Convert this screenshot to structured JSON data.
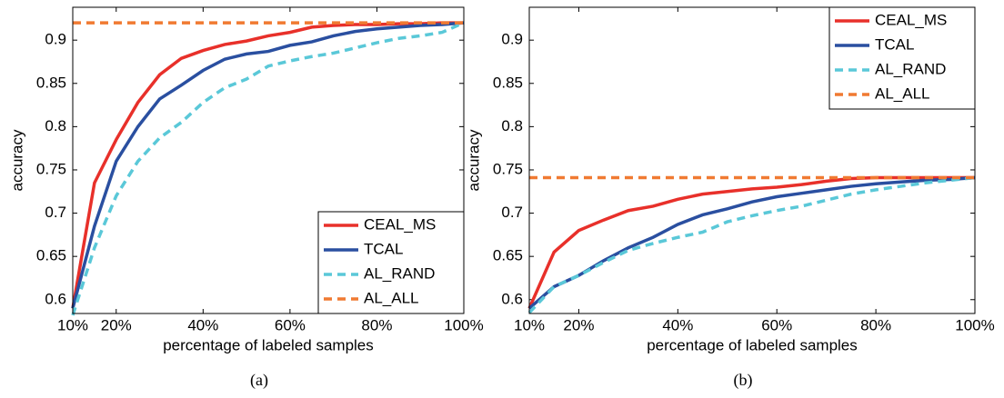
{
  "chart_data": [
    {
      "type": "line",
      "caption": "(a)",
      "x_label": "percentage of labeled samples",
      "y_label": "accuracy",
      "x": [
        10,
        15,
        20,
        25,
        30,
        35,
        40,
        45,
        50,
        55,
        60,
        65,
        70,
        75,
        80,
        85,
        90,
        95,
        100
      ],
      "series": [
        {
          "name": "CEAL_MS",
          "color": "#e8302a",
          "linestyle": "solid",
          "values": [
            0.59,
            0.735,
            0.785,
            0.828,
            0.86,
            0.879,
            0.888,
            0.895,
            0.899,
            0.905,
            0.909,
            0.915,
            0.917,
            0.918,
            0.918,
            0.919,
            0.919,
            0.92,
            0.92
          ]
        },
        {
          "name": "TCAL",
          "color": "#2a4fa0",
          "linestyle": "solid",
          "values": [
            0.59,
            0.685,
            0.76,
            0.8,
            0.832,
            0.848,
            0.865,
            0.878,
            0.884,
            0.887,
            0.894,
            0.898,
            0.905,
            0.91,
            0.913,
            0.915,
            0.917,
            0.918,
            0.92
          ]
        },
        {
          "name": "AL_RAND",
          "color": "#5ac8d8",
          "linestyle": "dashed",
          "values": [
            0.582,
            0.66,
            0.72,
            0.76,
            0.787,
            0.805,
            0.828,
            0.845,
            0.855,
            0.87,
            0.876,
            0.881,
            0.885,
            0.891,
            0.897,
            0.902,
            0.905,
            0.909,
            0.92
          ]
        },
        {
          "name": "AL_ALL",
          "color": "#f07a32",
          "linestyle": "dashed",
          "values": [
            0.92,
            0.92,
            0.92,
            0.92,
            0.92,
            0.92,
            0.92,
            0.92,
            0.92,
            0.92,
            0.92,
            0.92,
            0.92,
            0.92,
            0.92,
            0.92,
            0.92,
            0.92,
            0.92
          ]
        }
      ],
      "xlim": [
        10,
        100
      ],
      "xticks": [
        {
          "value": 10,
          "label": "10%"
        },
        {
          "value": 20,
          "label": "20%"
        },
        {
          "value": 40,
          "label": "40%"
        },
        {
          "value": 60,
          "label": "60%"
        },
        {
          "value": 80,
          "label": "80%"
        },
        {
          "value": 100,
          "label": "100%"
        }
      ],
      "ylim": [
        0.584,
        0.938
      ],
      "yticks": [
        0.6,
        0.65,
        0.7,
        0.75,
        0.8,
        0.85,
        0.9
      ],
      "grid": false,
      "legend": "lower right"
    },
    {
      "type": "line",
      "caption": "(b)",
      "x_label": "percentage of labeled samples",
      "y_label": "accuracy",
      "x": [
        10,
        15,
        20,
        25,
        30,
        35,
        40,
        45,
        50,
        55,
        60,
        65,
        70,
        75,
        80,
        85,
        90,
        95,
        100
      ],
      "series": [
        {
          "name": "CEAL_MS",
          "color": "#e8302a",
          "linestyle": "solid",
          "values": [
            0.59,
            0.655,
            0.68,
            0.692,
            0.703,
            0.708,
            0.716,
            0.722,
            0.725,
            0.728,
            0.73,
            0.733,
            0.737,
            0.74,
            0.741,
            0.741,
            0.741,
            0.741,
            0.741
          ]
        },
        {
          "name": "TCAL",
          "color": "#2a4fa0",
          "linestyle": "solid",
          "values": [
            0.59,
            0.615,
            0.628,
            0.645,
            0.66,
            0.672,
            0.687,
            0.698,
            0.705,
            0.713,
            0.719,
            0.723,
            0.727,
            0.731,
            0.734,
            0.736,
            0.738,
            0.739,
            0.741
          ]
        },
        {
          "name": "AL_RAND",
          "color": "#5ac8d8",
          "linestyle": "dashed",
          "values": [
            0.585,
            0.615,
            0.628,
            0.643,
            0.657,
            0.665,
            0.672,
            0.678,
            0.69,
            0.697,
            0.703,
            0.708,
            0.715,
            0.722,
            0.727,
            0.731,
            0.735,
            0.738,
            0.741
          ]
        },
        {
          "name": "AL_ALL",
          "color": "#f07a32",
          "linestyle": "dashed",
          "values": [
            0.741,
            0.741,
            0.741,
            0.741,
            0.741,
            0.741,
            0.741,
            0.741,
            0.741,
            0.741,
            0.741,
            0.741,
            0.741,
            0.741,
            0.741,
            0.741,
            0.741,
            0.741,
            0.741
          ]
        }
      ],
      "xlim": [
        10,
        100
      ],
      "xticks": [
        {
          "value": 10,
          "label": "10%"
        },
        {
          "value": 20,
          "label": "20%"
        },
        {
          "value": 40,
          "label": "40%"
        },
        {
          "value": 60,
          "label": "60%"
        },
        {
          "value": 80,
          "label": "80%"
        },
        {
          "value": 100,
          "label": "100%"
        }
      ],
      "ylim": [
        0.584,
        0.938
      ],
      "yticks": [
        0.6,
        0.65,
        0.7,
        0.75,
        0.8,
        0.85,
        0.9
      ],
      "grid": false,
      "legend": "upper right"
    }
  ]
}
